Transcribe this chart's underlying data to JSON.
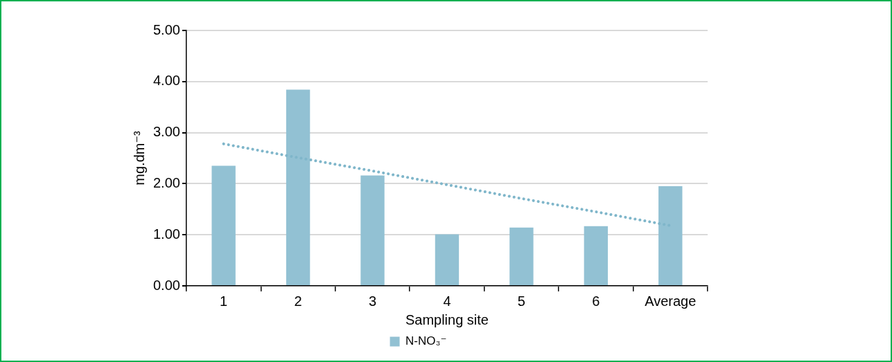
{
  "chart_data": {
    "type": "bar",
    "xlabel": "Sampling site",
    "ylabel": "mg.dm⁻³",
    "categories": [
      "1",
      "2",
      "3",
      "4",
      "5",
      "6",
      "Average"
    ],
    "series": [
      {
        "name": "N-NO₃⁻",
        "color": "#92c1d3",
        "values": [
          2.35,
          3.84,
          2.16,
          1.01,
          1.14,
          1.17,
          1.95
        ]
      },
      {
        "type": "line",
        "color": "#7fb6ca",
        "line_style": "dotted",
        "marker": "none",
        "values": [
          2.78,
          2.51,
          2.25,
          1.98,
          1.71,
          1.45,
          1.18
        ]
      }
    ],
    "ylim": [
      0,
      5
    ],
    "yticks": [
      {
        "value": 0,
        "label": "0.00"
      },
      {
        "value": 1,
        "label": "1.00"
      },
      {
        "value": 2,
        "label": "2.00"
      },
      {
        "value": 3,
        "label": "3.00"
      },
      {
        "value": 4,
        "label": "4.00"
      },
      {
        "value": 5,
        "label": "5.00"
      }
    ],
    "grid": "y",
    "legend": "bottom"
  }
}
